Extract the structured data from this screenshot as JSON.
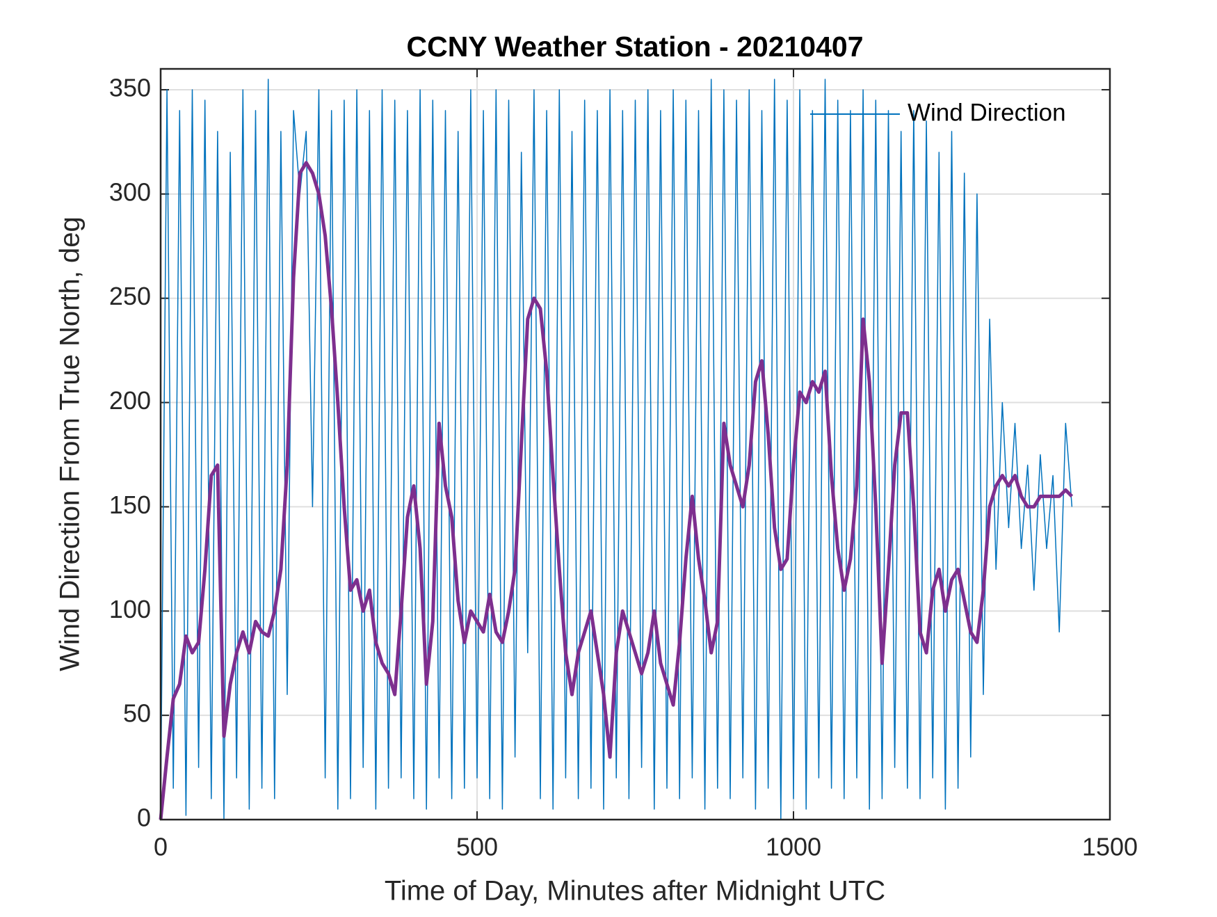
{
  "chart_data": {
    "type": "line",
    "title": "CCNY Weather Station - 20210407",
    "xlabel": "Time of Day, Minutes after Midnight UTC",
    "ylabel": "Wind Direction From True North, deg",
    "x": [
      0,
      10,
      20,
      30,
      40,
      50,
      60,
      70,
      80,
      90,
      100,
      110,
      120,
      130,
      140,
      150,
      160,
      170,
      180,
      190,
      200,
      210,
      220,
      230,
      240,
      250,
      260,
      270,
      280,
      290,
      300,
      310,
      320,
      330,
      340,
      350,
      360,
      370,
      380,
      390,
      400,
      410,
      420,
      430,
      440,
      450,
      460,
      470,
      480,
      490,
      500,
      510,
      520,
      530,
      540,
      550,
      560,
      570,
      580,
      590,
      600,
      610,
      620,
      630,
      640,
      650,
      660,
      670,
      680,
      690,
      700,
      710,
      720,
      730,
      740,
      750,
      760,
      770,
      780,
      790,
      800,
      810,
      820,
      830,
      840,
      850,
      860,
      870,
      880,
      890,
      900,
      910,
      920,
      930,
      940,
      950,
      960,
      970,
      980,
      990,
      1000,
      1010,
      1020,
      1030,
      1040,
      1050,
      1060,
      1070,
      1080,
      1090,
      1100,
      1110,
      1120,
      1130,
      1140,
      1150,
      1160,
      1170,
      1180,
      1190,
      1200,
      1210,
      1220,
      1230,
      1240,
      1250,
      1260,
      1270,
      1280,
      1290,
      1300,
      1310,
      1320,
      1330,
      1340,
      1350,
      1360,
      1370,
      1380,
      1390,
      1400,
      1410,
      1420,
      1430,
      1440
    ],
    "series": [
      {
        "name": "Wind Direction",
        "color": "#0072bd",
        "width": 1.5,
        "values": [
          5,
          350,
          15,
          340,
          2,
          350,
          25,
          345,
          10,
          330,
          0,
          320,
          20,
          350,
          5,
          340,
          15,
          355,
          10,
          330,
          60,
          340,
          300,
          330,
          150,
          350,
          20,
          340,
          5,
          345,
          10,
          350,
          25,
          340,
          5,
          350,
          15,
          345,
          20,
          340,
          10,
          350,
          5,
          345,
          20,
          340,
          10,
          330,
          15,
          350,
          20,
          340,
          10,
          350,
          5,
          345,
          30,
          320,
          80,
          350,
          10,
          340,
          5,
          350,
          20,
          330,
          10,
          345,
          15,
          340,
          5,
          350,
          20,
          340,
          10,
          345,
          25,
          350,
          5,
          340,
          15,
          350,
          10,
          345,
          20,
          340,
          5,
          355,
          15,
          350,
          10,
          345,
          20,
          350,
          5,
          340,
          15,
          355,
          0,
          345,
          10,
          350,
          5,
          340,
          20,
          355,
          15,
          345,
          10,
          340,
          20,
          350,
          5,
          345,
          10,
          340,
          25,
          330,
          15,
          340,
          10,
          335,
          20,
          320,
          5,
          330,
          15,
          310,
          30,
          300,
          60,
          240,
          120,
          200,
          140,
          190,
          130,
          170,
          110,
          175,
          130,
          165,
          90,
          190,
          150
        ]
      },
      {
        "color": "#7e2f8e",
        "width": 5,
        "values": [
          0,
          30,
          58,
          65,
          88,
          80,
          85,
          120,
          165,
          170,
          40,
          65,
          80,
          90,
          80,
          95,
          90,
          88,
          100,
          120,
          170,
          260,
          310,
          315,
          310,
          300,
          280,
          245,
          200,
          150,
          110,
          115,
          100,
          110,
          85,
          75,
          70,
          60,
          100,
          145,
          160,
          130,
          65,
          95,
          190,
          160,
          145,
          105,
          85,
          100,
          95,
          90,
          108,
          90,
          85,
          100,
          120,
          180,
          240,
          250,
          245,
          215,
          165,
          120,
          80,
          60,
          80,
          90,
          100,
          80,
          60,
          30,
          80,
          100,
          90,
          80,
          70,
          80,
          100,
          75,
          65,
          55,
          85,
          125,
          155,
          125,
          105,
          80,
          95,
          190,
          170,
          160,
          150,
          170,
          210,
          220,
          185,
          140,
          120,
          125,
          170,
          205,
          200,
          210,
          205,
          215,
          165,
          130,
          110,
          125,
          160,
          240,
          210,
          150,
          75,
          120,
          170,
          195,
          195,
          150,
          90,
          80,
          110,
          120,
          100,
          115,
          120,
          105,
          90,
          85,
          110,
          150,
          160,
          165,
          160,
          165,
          155,
          150,
          150,
          155,
          155,
          155,
          155,
          158,
          155
        ]
      }
    ],
    "xlim": [
      0,
      1500
    ],
    "xticks": [
      0,
      500,
      1000,
      1500
    ],
    "ylim": [
      0,
      360
    ],
    "yticks": [
      0,
      50,
      100,
      150,
      200,
      250,
      300,
      350
    ],
    "grid": true,
    "legend": "northeast"
  }
}
